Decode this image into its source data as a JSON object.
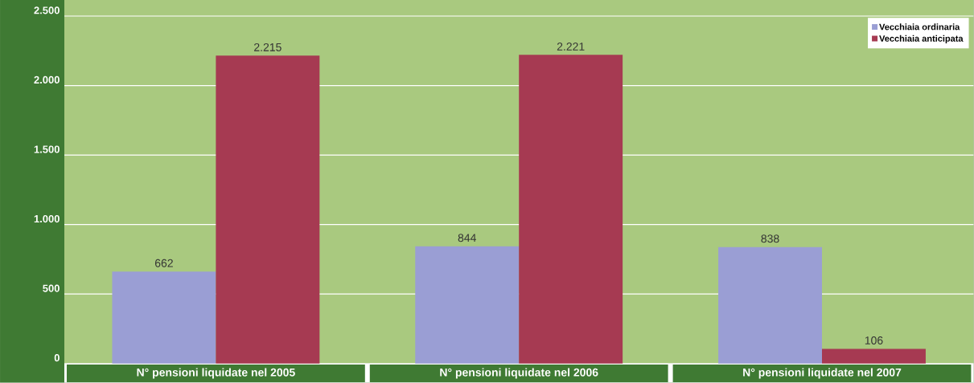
{
  "chart_data": {
    "type": "bar",
    "categories": [
      "N° pensioni liquidate nel 2005",
      "N° pensioni liquidate nel 2006",
      "N° pensioni liquidate nel 2007"
    ],
    "series": [
      {
        "name": "Vecchiaia ordinaria",
        "color": "#9a9ed4",
        "values": [
          662,
          844,
          838
        ],
        "value_labels": [
          "662",
          "844",
          "838"
        ]
      },
      {
        "name": "Vecchiaia anticipata",
        "color": "#a63a52",
        "values": [
          2215,
          2221,
          106
        ],
        "value_labels": [
          "2.215",
          "2.221",
          "106"
        ]
      }
    ],
    "ylim": [
      0,
      2500
    ],
    "yticks": [
      0,
      {
        "value": 500,
        "label": "500"
      },
      {
        "value": 1000,
        "label": "1.000"
      },
      {
        "value": 1500,
        "label": "1.500"
      },
      {
        "value": 2000,
        "label": "2.000"
      },
      {
        "value": 2500,
        "label": "2.500"
      }
    ],
    "grid": "y",
    "legend": "top right"
  }
}
